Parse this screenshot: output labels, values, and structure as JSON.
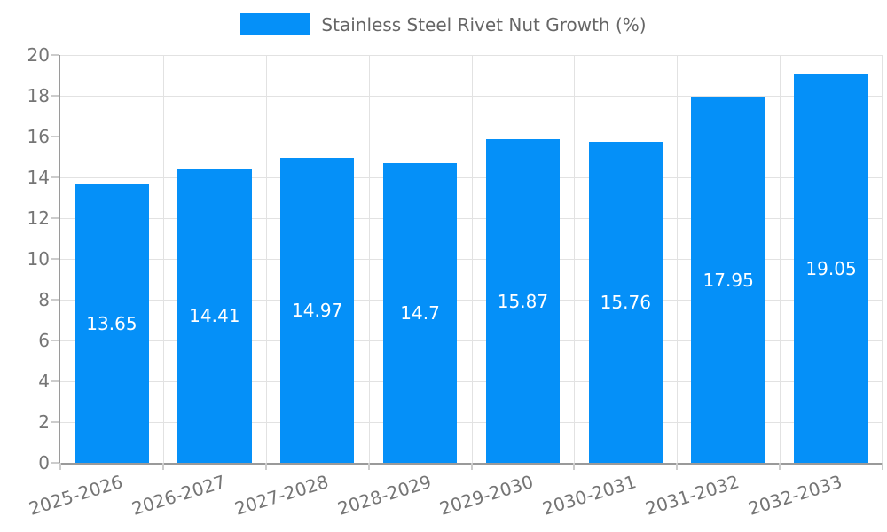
{
  "legend": {
    "label": "Stainless Steel Rivet Nut Growth (%)"
  },
  "chart_data": {
    "type": "bar",
    "title": "",
    "series_name": "Stainless Steel Rivet Nut Growth (%)",
    "legend_entries": [
      "Stainless Steel Rivet Nut Growth (%)"
    ],
    "legend_position": "top",
    "categories": [
      "2025-2026",
      "2026-2027",
      "2027-2028",
      "2028-2029",
      "2029-2030",
      "2030-2031",
      "2031-2032",
      "2032-2033"
    ],
    "values": [
      13.65,
      14.41,
      14.97,
      14.7,
      15.87,
      15.76,
      17.95,
      19.05
    ],
    "xlabel": "",
    "ylabel": "",
    "ylim": [
      0,
      20
    ],
    "ytick_step": 2,
    "yticks": [
      0,
      2,
      4,
      6,
      8,
      10,
      12,
      14,
      16,
      18,
      20
    ],
    "grid": true,
    "bar_label_position": "inside-center"
  },
  "colors": {
    "bar": "#0590f8",
    "grid": "#e2e2e2",
    "axis": "#9a9a9a",
    "tick": "#cccccc",
    "tick_label": "#757575",
    "legend_text": "#666666",
    "bar_label": "#ffffff",
    "background": "#ffffff"
  }
}
